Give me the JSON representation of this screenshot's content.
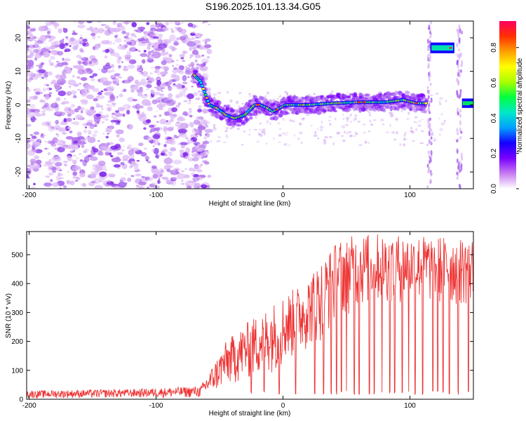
{
  "title": "S196.2025.101.13.34.G05",
  "chart_data": [
    {
      "type": "heatmap",
      "xlabel": "Height of straight line (km)",
      "ylabel": "Frequency (Hz)",
      "xlim": [
        -202,
        150
      ],
      "ylim": [
        -25,
        25
      ],
      "xticks": [
        "-200",
        "-100",
        "0",
        "100"
      ],
      "yticks": [
        "-20",
        "-10",
        "0",
        "10",
        "20"
      ],
      "colorbar": {
        "label": "Normalized spectral amplitude",
        "range": [
          0,
          0.95
        ],
        "ticks": [
          "0.0",
          "0.2",
          "0.4",
          "0.6",
          "0.8"
        ],
        "colors": [
          "#ffffff",
          "#c77df0",
          "#7a00ff",
          "#1400ff",
          "#00a0ff",
          "#00e8c8",
          "#00ff40",
          "#a8ff00",
          "#ffff00",
          "#ffa000",
          "#ff3000",
          "#ff0060"
        ]
      },
      "noise_region_x": [
        -202,
        -62
      ],
      "signal_trace": [
        {
          "x": -70,
          "f": 9
        },
        {
          "x": -65,
          "f": 7
        },
        {
          "x": -62,
          "f": 4
        },
        {
          "x": -58,
          "f": 0
        },
        {
          "x": -52,
          "f": -1
        },
        {
          "x": -45,
          "f": -3
        },
        {
          "x": -38,
          "f": -4
        },
        {
          "x": -30,
          "f": -3
        },
        {
          "x": -25,
          "f": -1
        },
        {
          "x": -22,
          "f": 0
        },
        {
          "x": -18,
          "f": 0
        },
        {
          "x": -12,
          "f": -1
        },
        {
          "x": -8,
          "f": -2
        },
        {
          "x": -3,
          "f": -1
        },
        {
          "x": 2,
          "f": 0
        },
        {
          "x": 20,
          "f": 0
        },
        {
          "x": 40,
          "f": 0.5
        },
        {
          "x": 60,
          "f": 0.8
        },
        {
          "x": 80,
          "f": 0.8
        },
        {
          "x": 95,
          "f": 1.5
        },
        {
          "x": 105,
          "f": 0.5
        },
        {
          "x": 113,
          "f": 0.5
        }
      ],
      "secondary_trace": {
        "x": [
          116,
          135
        ],
        "f": 17
      },
      "tail_trace": {
        "x": [
          141,
          150
        ],
        "f": 0.5
      }
    },
    {
      "type": "line",
      "xlabel": "Height of straight line (km)",
      "ylabel": "SNR (10 * v/v)",
      "xlim": [
        -202,
        150
      ],
      "ylim": [
        0,
        580
      ],
      "xticks": [
        "-200",
        "-100",
        "0",
        "100"
      ],
      "yticks": [
        "0",
        "100",
        "200",
        "300",
        "400",
        "500"
      ],
      "color": "#ee3333",
      "envelope": [
        {
          "x": -202,
          "low": 3,
          "high": 30
        },
        {
          "x": -120,
          "low": 5,
          "high": 35
        },
        {
          "x": -65,
          "low": 5,
          "high": 45
        },
        {
          "x": -55,
          "low": 20,
          "high": 120
        },
        {
          "x": -45,
          "low": 40,
          "high": 200
        },
        {
          "x": -30,
          "low": 60,
          "high": 260
        },
        {
          "x": -15,
          "low": 80,
          "high": 310
        },
        {
          "x": 0,
          "low": 110,
          "high": 360
        },
        {
          "x": 15,
          "low": 160,
          "high": 400
        },
        {
          "x": 30,
          "low": 200,
          "high": 480
        },
        {
          "x": 45,
          "low": 280,
          "high": 560
        },
        {
          "x": 70,
          "low": 330,
          "high": 575
        },
        {
          "x": 100,
          "low": 330,
          "high": 570
        },
        {
          "x": 130,
          "low": 320,
          "high": 565
        },
        {
          "x": 150,
          "low": 320,
          "high": 560
        }
      ],
      "dropouts_x": [
        -25,
        -15,
        -3,
        10,
        25,
        32,
        38,
        42,
        46,
        50,
        56,
        60,
        68,
        72,
        78,
        84,
        88,
        94,
        99,
        104,
        110,
        118,
        122,
        126,
        131,
        138,
        146
      ]
    }
  ]
}
